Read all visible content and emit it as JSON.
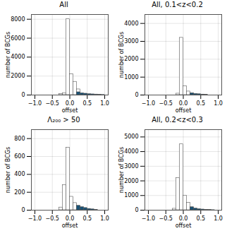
{
  "chart_data": [
    {
      "type": "bar",
      "title": "All",
      "xlabel": "offset",
      "ylabel": "number of BCGs",
      "xlim": [
        -1.1,
        1.1
      ],
      "xticks": [
        {
          "value": -1.0,
          "label": "−1.0"
        },
        {
          "value": -0.5,
          "label": "−0.5"
        },
        {
          "value": 0.0,
          "label": "0.0"
        },
        0.5,
        {
          "value": 1.0,
          "label": "1.0"
        }
      ],
      "ylim": [
        0,
        8500
      ],
      "yticks": [
        0,
        2000,
        4000,
        6000,
        8000
      ],
      "grid": true,
      "bin_width": 0.1,
      "series": [
        {
          "color": "white",
          "x": [
            -0.25,
            -0.15,
            -0.05,
            0.05,
            0.15,
            0.25
          ],
          "values": [
            100,
            200,
            8000,
            2200,
            1400,
            600
          ]
        },
        {
          "color": "#1a5276",
          "x": [
            0.25,
            0.35,
            0.45,
            0.55,
            0.65,
            0.75,
            0.85,
            0.95
          ],
          "values": [
            300,
            200,
            150,
            100,
            80,
            60,
            40,
            20
          ]
        }
      ]
    },
    {
      "type": "bar",
      "title": "All, 0.1<z<0.2",
      "xlabel": "offset",
      "ylabel": "number of BCGs",
      "xlim": [
        -1.1,
        1.1
      ],
      "xticks": [
        {
          "value": -1.0,
          "label": "−1.0"
        },
        {
          "value": -0.5,
          "label": "−0.5"
        },
        {
          "value": 0.0,
          "label": "0.0"
        },
        0.5,
        {
          "value": 1.0,
          "label": "1.0"
        }
      ],
      "ylim": [
        0,
        4500
      ],
      "yticks": [
        0,
        1000,
        2000,
        3000,
        4000
      ],
      "grid": true,
      "bin_width": 0.1,
      "series": [
        {
          "color": "white",
          "x": [
            -0.15,
            -0.05,
            0.05,
            0.15,
            0.25
          ],
          "values": [
            80,
            3200,
            500,
            200,
            100
          ]
        },
        {
          "color": "#1a5276",
          "x": [
            0.25,
            0.35,
            0.45,
            0.55,
            0.65
          ],
          "values": [
            100,
            70,
            50,
            30,
            15
          ]
        }
      ]
    },
    {
      "type": "bar",
      "title": "Λ₂₀₀ > 50",
      "xlabel": "offset",
      "ylabel": "number of BCGs",
      "xlim": [
        -1.1,
        1.1
      ],
      "xticks": [
        {
          "value": -1.0,
          "label": "−1.0"
        },
        {
          "value": -0.5,
          "label": "−0.5"
        },
        {
          "value": 0.0,
          "label": "0.0"
        },
        0.5,
        {
          "value": 1.0,
          "label": "1.0"
        }
      ],
      "ylim": [
        0,
        900
      ],
      "yticks": [
        0,
        200,
        400,
        600,
        800
      ],
      "grid": true,
      "bin_width": 0.1,
      "series": [
        {
          "color": "white",
          "x": [
            -0.25,
            -0.15,
            -0.05,
            0.05,
            0.15,
            0.25
          ],
          "values": [
            30,
            280,
            700,
            150,
            80,
            40
          ]
        },
        {
          "color": "#1a5276",
          "x": [
            0.25,
            0.35,
            0.45,
            0.55,
            0.65,
            0.75
          ],
          "values": [
            50,
            35,
            25,
            15,
            10,
            5
          ]
        }
      ]
    },
    {
      "type": "bar",
      "title": "All, 0.2<z<0.3",
      "xlabel": "offset",
      "ylabel": "number of BCGs",
      "xlim": [
        -1.1,
        1.1
      ],
      "xticks": [
        {
          "value": -1.0,
          "label": "−1.0"
        },
        {
          "value": -0.5,
          "label": "−0.5"
        },
        {
          "value": 0.0,
          "label": "0.0"
        },
        0.5,
        {
          "value": 1.0,
          "label": "1.0"
        }
      ],
      "ylim": [
        0,
        5500
      ],
      "yticks": [
        0,
        1000,
        2000,
        3000,
        4000,
        5000
      ],
      "grid": true,
      "bin_width": 0.1,
      "series": [
        {
          "color": "white",
          "x": [
            -0.25,
            -0.15,
            -0.05,
            0.05,
            0.15,
            0.25
          ],
          "values": [
            100,
            2200,
            4500,
            1000,
            500,
            200
          ]
        },
        {
          "color": "#1a5276",
          "x": [
            0.25,
            0.35,
            0.45,
            0.55,
            0.65,
            0.75,
            0.85
          ],
          "values": [
            200,
            120,
            80,
            50,
            30,
            15,
            8
          ]
        }
      ]
    }
  ]
}
